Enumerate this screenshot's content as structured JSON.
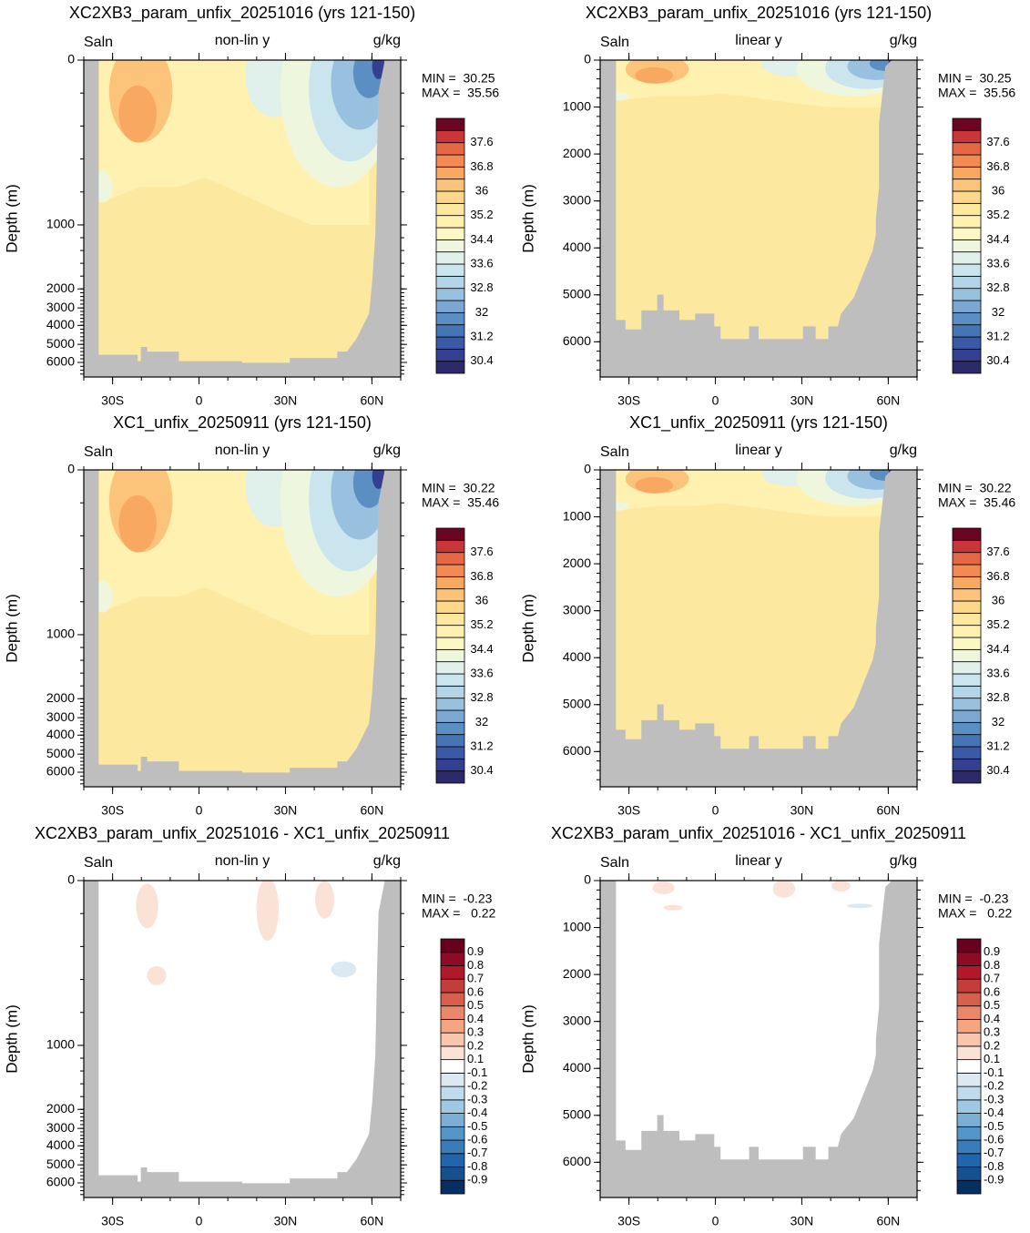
{
  "chart_data": [
    {
      "type": "contour",
      "title": "XC2XB3_param_unfix_20251016 (yrs 121-150)",
      "left_label": "Saln",
      "center_label": "non-lin y",
      "right_label": "g/kg",
      "ylabel": "Depth (m)",
      "yscale": "nonlinear",
      "ylim": [
        0,
        6750
      ],
      "yticks": [
        0,
        1000,
        2000,
        3000,
        4000,
        5000,
        6000
      ],
      "xlim": [
        -40,
        70
      ],
      "xticks": [
        {
          "value": -30,
          "label": "30S"
        },
        0,
        {
          "value": 30,
          "label": "30N"
        },
        {
          "value": 60,
          "label": "60N"
        }
      ],
      "min_label": "MIN =  30.25",
      "max_label": "MAX =  35.56",
      "colorbar": {
        "labels": [
          30.4,
          31.2,
          32,
          32.8,
          33.6,
          34.4,
          35.2,
          36,
          36.8,
          37.6
        ],
        "colors": [
          "#2c2a6b",
          "#353f8f",
          "#3a5aa5",
          "#4575b4",
          "#5b8fc4",
          "#7aa8d3",
          "#98c1df",
          "#b3d5e8",
          "#cbe5ef",
          "#e0f0ea",
          "#eef7dd",
          "#fbf8c6",
          "#fff2b0",
          "#fde8a0",
          "#fdd88a",
          "#fcc47a",
          "#f9a862",
          "#f38a52",
          "#e56745",
          "#c8363a",
          "#6b0524"
        ]
      }
    },
    {
      "type": "contour",
      "title": "XC2XB3_param_unfix_20251016 (yrs 121-150)",
      "left_label": "Saln",
      "center_label": "linear y",
      "right_label": "g/kg",
      "ylabel": "Depth (m)",
      "yscale": "linear",
      "ylim": [
        0,
        6750
      ],
      "yticks": [
        0,
        1000,
        2000,
        3000,
        4000,
        5000,
        6000
      ],
      "xlim": [
        -40,
        70
      ],
      "xticks": [
        {
          "value": -30,
          "label": "30S"
        },
        0,
        {
          "value": 30,
          "label": "30N"
        },
        {
          "value": 60,
          "label": "60N"
        }
      ],
      "min_label": "MIN =  30.25",
      "max_label": "MAX =  35.56",
      "colorbar": {
        "labels": [
          30.4,
          31.2,
          32,
          32.8,
          33.6,
          34.4,
          35.2,
          36,
          36.8,
          37.6
        ],
        "colors": [
          "#2c2a6b",
          "#353f8f",
          "#3a5aa5",
          "#4575b4",
          "#5b8fc4",
          "#7aa8d3",
          "#98c1df",
          "#b3d5e8",
          "#cbe5ef",
          "#e0f0ea",
          "#eef7dd",
          "#fbf8c6",
          "#fff2b0",
          "#fde8a0",
          "#fdd88a",
          "#fcc47a",
          "#f9a862",
          "#f38a52",
          "#e56745",
          "#c8363a",
          "#6b0524"
        ]
      }
    },
    {
      "type": "contour",
      "title": "XC1_unfix_20250911 (yrs 121-150)",
      "left_label": "Saln",
      "center_label": "non-lin y",
      "right_label": "g/kg",
      "ylabel": "Depth (m)",
      "yscale": "nonlinear",
      "ylim": [
        0,
        6750
      ],
      "yticks": [
        0,
        1000,
        2000,
        3000,
        4000,
        5000,
        6000
      ],
      "xlim": [
        -40,
        70
      ],
      "xticks": [
        {
          "value": -30,
          "label": "30S"
        },
        0,
        {
          "value": 30,
          "label": "30N"
        },
        {
          "value": 60,
          "label": "60N"
        }
      ],
      "min_label": "MIN =  30.22",
      "max_label": "MAX =  35.46",
      "colorbar": {
        "labels": [
          30.4,
          31.2,
          32,
          32.8,
          33.6,
          34.4,
          35.2,
          36,
          36.8,
          37.6
        ],
        "colors": [
          "#2c2a6b",
          "#353f8f",
          "#3a5aa5",
          "#4575b4",
          "#5b8fc4",
          "#7aa8d3",
          "#98c1df",
          "#b3d5e8",
          "#cbe5ef",
          "#e0f0ea",
          "#eef7dd",
          "#fbf8c6",
          "#fff2b0",
          "#fde8a0",
          "#fdd88a",
          "#fcc47a",
          "#f9a862",
          "#f38a52",
          "#e56745",
          "#c8363a",
          "#6b0524"
        ]
      }
    },
    {
      "type": "contour",
      "title": "XC1_unfix_20250911 (yrs 121-150)",
      "left_label": "Saln",
      "center_label": "linear y",
      "right_label": "g/kg",
      "ylabel": "Depth (m)",
      "yscale": "linear",
      "ylim": [
        0,
        6750
      ],
      "yticks": [
        0,
        1000,
        2000,
        3000,
        4000,
        5000,
        6000
      ],
      "xlim": [
        -40,
        70
      ],
      "xticks": [
        {
          "value": -30,
          "label": "30S"
        },
        0,
        {
          "value": 30,
          "label": "30N"
        },
        {
          "value": 60,
          "label": "60N"
        }
      ],
      "min_label": "MIN =  30.22",
      "max_label": "MAX =  35.46",
      "colorbar": {
        "labels": [
          30.4,
          31.2,
          32,
          32.8,
          33.6,
          34.4,
          35.2,
          36,
          36.8,
          37.6
        ],
        "colors": [
          "#2c2a6b",
          "#353f8f",
          "#3a5aa5",
          "#4575b4",
          "#5b8fc4",
          "#7aa8d3",
          "#98c1df",
          "#b3d5e8",
          "#cbe5ef",
          "#e0f0ea",
          "#eef7dd",
          "#fbf8c6",
          "#fff2b0",
          "#fde8a0",
          "#fdd88a",
          "#fcc47a",
          "#f9a862",
          "#f38a52",
          "#e56745",
          "#c8363a",
          "#6b0524"
        ]
      }
    },
    {
      "type": "contour",
      "title": "XC2XB3_param_unfix_20251016 - XC1_unfix_20250911",
      "left_label": "Saln",
      "center_label": "non-lin y",
      "right_label": "g/kg",
      "ylabel": "Depth (m)",
      "yscale": "nonlinear",
      "ylim": [
        0,
        6750
      ],
      "yticks": [
        0,
        1000,
        2000,
        3000,
        4000,
        5000,
        6000
      ],
      "xlim": [
        -40,
        70
      ],
      "xticks": [
        {
          "value": -30,
          "label": "30S"
        },
        0,
        {
          "value": 30,
          "label": "30N"
        },
        {
          "value": 60,
          "label": "60N"
        }
      ],
      "min_label": "MIN =  -0.23",
      "max_label": "MAX =   0.22",
      "colorbar": {
        "labels": [
          -0.9,
          -0.8,
          -0.7,
          -0.6,
          -0.5,
          -0.4,
          -0.3,
          -0.2,
          -0.1,
          0.1,
          0.2,
          0.3,
          0.4,
          0.5,
          0.6,
          0.7,
          0.8,
          0.9
        ],
        "colors": [
          "#053061",
          "#16508f",
          "#2166ac",
          "#3a7cba",
          "#5596c8",
          "#7bafd6",
          "#9fc8e2",
          "#c0dcec",
          "#dce9f2",
          "#ffffff",
          "#fbe2d6",
          "#f9c6ad",
          "#f4a582",
          "#e8876a",
          "#d6604d",
          "#c13e3a",
          "#b2182b",
          "#8e0b27",
          "#67001f"
        ]
      }
    },
    {
      "type": "contour",
      "title": "XC2XB3_param_unfix_20251016 - XC1_unfix_20250911",
      "left_label": "Saln",
      "center_label": "linear y",
      "right_label": "g/kg",
      "ylabel": "Depth (m)",
      "yscale": "linear",
      "ylim": [
        0,
        6750
      ],
      "yticks": [
        0,
        1000,
        2000,
        3000,
        4000,
        5000,
        6000
      ],
      "xlim": [
        -40,
        70
      ],
      "xticks": [
        {
          "value": -30,
          "label": "30S"
        },
        0,
        {
          "value": 30,
          "label": "30N"
        },
        {
          "value": 60,
          "label": "60N"
        }
      ],
      "min_label": "MIN =  -0.23",
      "max_label": "MAX =   0.22",
      "colorbar": {
        "labels": [
          -0.9,
          -0.8,
          -0.7,
          -0.6,
          -0.5,
          -0.4,
          -0.3,
          -0.2,
          -0.1,
          0.1,
          0.2,
          0.3,
          0.4,
          0.5,
          0.6,
          0.7,
          0.8,
          0.9
        ],
        "colors": [
          "#053061",
          "#16508f",
          "#2166ac",
          "#3a7cba",
          "#5596c8",
          "#7bafd6",
          "#9fc8e2",
          "#c0dcec",
          "#dce9f2",
          "#ffffff",
          "#fbe2d6",
          "#f9c6ad",
          "#f4a582",
          "#e8876a",
          "#d6604d",
          "#c13e3a",
          "#b2182b",
          "#8e0b27",
          "#67001f"
        ]
      }
    }
  ]
}
